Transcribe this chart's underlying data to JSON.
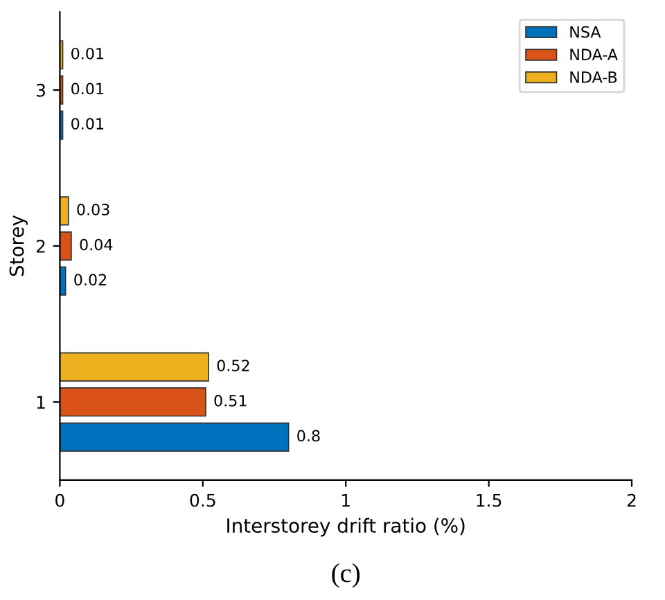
{
  "chart_data": {
    "type": "bar",
    "orientation": "horizontal",
    "xlabel": "Interstorey drift ratio (%)",
    "ylabel": "Storey",
    "categories": [
      "3",
      "2",
      "1"
    ],
    "series": [
      {
        "name": "NSA",
        "color": "#0072bd",
        "values": [
          0.01,
          0.02,
          0.8
        ]
      },
      {
        "name": "NDA-A",
        "color": "#d95319",
        "values": [
          0.01,
          0.04,
          0.51
        ]
      },
      {
        "name": "NDA-B",
        "color": "#edb120",
        "values": [
          0.01,
          0.03,
          0.52
        ]
      }
    ],
    "xlim": [
      0,
      2
    ],
    "xticks": [
      0,
      0.5,
      1,
      1.5,
      2
    ],
    "data_labels": true,
    "legend": "top right",
    "grid": false,
    "annotations": [
      "(c)"
    ]
  }
}
